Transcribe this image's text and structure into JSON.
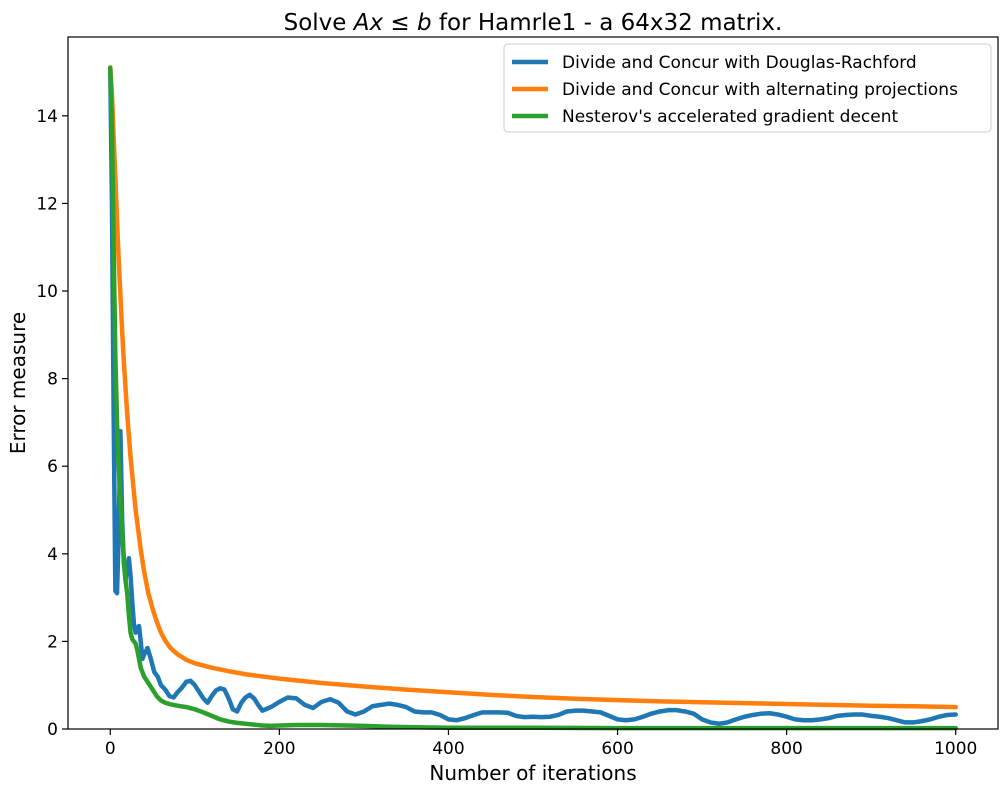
{
  "chart_data": {
    "type": "line",
    "title": "Solve Ax ≤ b for Hamrle1 - a 64x32 matrix.",
    "title_parts": {
      "prefix": "Solve ",
      "math": "Ax ≤ b",
      "suffix": " for Hamrle1 - a 64x32 matrix."
    },
    "xlabel": "Number of iterations",
    "ylabel": "Error measure",
    "xlim": [
      -50,
      1050
    ],
    "ylim": [
      0,
      15.8
    ],
    "xticks": [
      0,
      200,
      400,
      600,
      800,
      1000
    ],
    "yticks": [
      0,
      2,
      4,
      6,
      8,
      10,
      12,
      14
    ],
    "grid": false,
    "legend_position": "top-right",
    "series": [
      {
        "name": "Divide and Concur with Douglas-Rachford",
        "color": "#1f77b4",
        "points": [
          [
            0,
            15.1
          ],
          [
            2,
            12.0
          ],
          [
            4,
            7.2
          ],
          [
            6,
            3.15
          ],
          [
            8,
            3.1
          ],
          [
            10,
            4.5
          ],
          [
            12,
            6.8
          ],
          [
            14,
            4.8
          ],
          [
            16,
            3.8
          ],
          [
            18,
            3.4
          ],
          [
            20,
            3.7
          ],
          [
            22,
            3.9
          ],
          [
            24,
            3.5
          ],
          [
            26,
            2.9
          ],
          [
            28,
            2.4
          ],
          [
            30,
            2.2
          ],
          [
            32,
            2.3
          ],
          [
            34,
            2.35
          ],
          [
            36,
            2.0
          ],
          [
            38,
            1.6
          ],
          [
            40,
            1.7
          ],
          [
            44,
            1.85
          ],
          [
            48,
            1.6
          ],
          [
            52,
            1.3
          ],
          [
            56,
            1.2
          ],
          [
            60,
            1.0
          ],
          [
            65,
            0.9
          ],
          [
            70,
            0.75
          ],
          [
            75,
            0.72
          ],
          [
            80,
            0.85
          ],
          [
            85,
            0.95
          ],
          [
            90,
            1.08
          ],
          [
            95,
            1.1
          ],
          [
            100,
            1.0
          ],
          [
            105,
            0.85
          ],
          [
            110,
            0.7
          ],
          [
            115,
            0.6
          ],
          [
            120,
            0.75
          ],
          [
            125,
            0.88
          ],
          [
            130,
            0.93
          ],
          [
            135,
            0.9
          ],
          [
            140,
            0.7
          ],
          [
            145,
            0.45
          ],
          [
            150,
            0.4
          ],
          [
            155,
            0.6
          ],
          [
            160,
            0.72
          ],
          [
            165,
            0.78
          ],
          [
            170,
            0.7
          ],
          [
            175,
            0.55
          ],
          [
            180,
            0.42
          ],
          [
            190,
            0.5
          ],
          [
            200,
            0.62
          ],
          [
            210,
            0.72
          ],
          [
            220,
            0.7
          ],
          [
            230,
            0.55
          ],
          [
            240,
            0.48
          ],
          [
            250,
            0.62
          ],
          [
            260,
            0.68
          ],
          [
            270,
            0.6
          ],
          [
            280,
            0.4
          ],
          [
            290,
            0.33
          ],
          [
            300,
            0.4
          ],
          [
            310,
            0.52
          ],
          [
            320,
            0.55
          ],
          [
            330,
            0.58
          ],
          [
            340,
            0.55
          ],
          [
            350,
            0.5
          ],
          [
            360,
            0.4
          ],
          [
            370,
            0.38
          ],
          [
            380,
            0.38
          ],
          [
            390,
            0.32
          ],
          [
            400,
            0.22
          ],
          [
            410,
            0.2
          ],
          [
            420,
            0.25
          ],
          [
            430,
            0.32
          ],
          [
            440,
            0.38
          ],
          [
            450,
            0.38
          ],
          [
            460,
            0.38
          ],
          [
            470,
            0.37
          ],
          [
            480,
            0.3
          ],
          [
            490,
            0.27
          ],
          [
            500,
            0.28
          ],
          [
            510,
            0.27
          ],
          [
            520,
            0.28
          ],
          [
            530,
            0.32
          ],
          [
            540,
            0.4
          ],
          [
            550,
            0.42
          ],
          [
            560,
            0.42
          ],
          [
            570,
            0.4
          ],
          [
            580,
            0.38
          ],
          [
            590,
            0.3
          ],
          [
            600,
            0.22
          ],
          [
            610,
            0.2
          ],
          [
            620,
            0.22
          ],
          [
            630,
            0.28
          ],
          [
            640,
            0.35
          ],
          [
            650,
            0.4
          ],
          [
            660,
            0.43
          ],
          [
            670,
            0.43
          ],
          [
            680,
            0.4
          ],
          [
            690,
            0.35
          ],
          [
            700,
            0.22
          ],
          [
            710,
            0.15
          ],
          [
            720,
            0.12
          ],
          [
            730,
            0.15
          ],
          [
            740,
            0.22
          ],
          [
            750,
            0.28
          ],
          [
            760,
            0.32
          ],
          [
            770,
            0.35
          ],
          [
            780,
            0.36
          ],
          [
            790,
            0.33
          ],
          [
            800,
            0.28
          ],
          [
            810,
            0.22
          ],
          [
            820,
            0.2
          ],
          [
            830,
            0.2
          ],
          [
            840,
            0.22
          ],
          [
            850,
            0.25
          ],
          [
            860,
            0.3
          ],
          [
            870,
            0.32
          ],
          [
            880,
            0.33
          ],
          [
            890,
            0.33
          ],
          [
            900,
            0.3
          ],
          [
            910,
            0.28
          ],
          [
            920,
            0.25
          ],
          [
            930,
            0.2
          ],
          [
            940,
            0.15
          ],
          [
            950,
            0.15
          ],
          [
            960,
            0.18
          ],
          [
            970,
            0.22
          ],
          [
            980,
            0.28
          ],
          [
            990,
            0.32
          ],
          [
            1000,
            0.33
          ]
        ]
      },
      {
        "name": "Divide and Concur with alternating projections",
        "color": "#ff7f0e",
        "points": [
          [
            0,
            15.1
          ],
          [
            2,
            14.5
          ],
          [
            4,
            13.5
          ],
          [
            6,
            12.6
          ],
          [
            8,
            11.6
          ],
          [
            10,
            10.7
          ],
          [
            12,
            9.9
          ],
          [
            14,
            9.1
          ],
          [
            16,
            8.4
          ],
          [
            18,
            7.8
          ],
          [
            20,
            7.2
          ],
          [
            22,
            6.7
          ],
          [
            24,
            6.2
          ],
          [
            26,
            5.8
          ],
          [
            28,
            5.4
          ],
          [
            30,
            5.0
          ],
          [
            32,
            4.7
          ],
          [
            34,
            4.4
          ],
          [
            36,
            4.1
          ],
          [
            38,
            3.85
          ],
          [
            40,
            3.6
          ],
          [
            45,
            3.1
          ],
          [
            50,
            2.75
          ],
          [
            55,
            2.45
          ],
          [
            60,
            2.2
          ],
          [
            65,
            2.02
          ],
          [
            70,
            1.88
          ],
          [
            75,
            1.78
          ],
          [
            80,
            1.7
          ],
          [
            90,
            1.58
          ],
          [
            100,
            1.5
          ],
          [
            120,
            1.4
          ],
          [
            140,
            1.32
          ],
          [
            160,
            1.25
          ],
          [
            180,
            1.2
          ],
          [
            200,
            1.15
          ],
          [
            250,
            1.05
          ],
          [
            300,
            0.97
          ],
          [
            350,
            0.9
          ],
          [
            400,
            0.84
          ],
          [
            450,
            0.78
          ],
          [
            500,
            0.73
          ],
          [
            550,
            0.69
          ],
          [
            600,
            0.66
          ],
          [
            650,
            0.63
          ],
          [
            700,
            0.61
          ],
          [
            750,
            0.59
          ],
          [
            800,
            0.57
          ],
          [
            850,
            0.55
          ],
          [
            900,
            0.53
          ],
          [
            950,
            0.52
          ],
          [
            1000,
            0.5
          ]
        ]
      },
      {
        "name": "Nesterov's accelerated gradient decent",
        "color": "#2ca02c",
        "points": [
          [
            0,
            15.1
          ],
          [
            2,
            13.8
          ],
          [
            4,
            11.0
          ],
          [
            6,
            8.5
          ],
          [
            8,
            7.0
          ],
          [
            10,
            6.0
          ],
          [
            12,
            5.2
          ],
          [
            14,
            4.5
          ],
          [
            16,
            3.9
          ],
          [
            18,
            3.4
          ],
          [
            20,
            3.1
          ],
          [
            22,
            2.6
          ],
          [
            24,
            2.2
          ],
          [
            26,
            2.05
          ],
          [
            28,
            2.0
          ],
          [
            30,
            1.95
          ],
          [
            32,
            1.8
          ],
          [
            34,
            1.6
          ],
          [
            36,
            1.4
          ],
          [
            38,
            1.3
          ],
          [
            40,
            1.2
          ],
          [
            45,
            1.05
          ],
          [
            50,
            0.9
          ],
          [
            55,
            0.75
          ],
          [
            60,
            0.65
          ],
          [
            65,
            0.6
          ],
          [
            70,
            0.57
          ],
          [
            80,
            0.53
          ],
          [
            90,
            0.5
          ],
          [
            100,
            0.45
          ],
          [
            110,
            0.38
          ],
          [
            120,
            0.3
          ],
          [
            130,
            0.22
          ],
          [
            140,
            0.17
          ],
          [
            150,
            0.14
          ],
          [
            160,
            0.12
          ],
          [
            170,
            0.1
          ],
          [
            180,
            0.08
          ],
          [
            190,
            0.07
          ],
          [
            200,
            0.08
          ],
          [
            220,
            0.09
          ],
          [
            250,
            0.09
          ],
          [
            280,
            0.08
          ],
          [
            300,
            0.07
          ],
          [
            330,
            0.05
          ],
          [
            360,
            0.04
          ],
          [
            400,
            0.03
          ],
          [
            450,
            0.03
          ],
          [
            500,
            0.03
          ],
          [
            600,
            0.02
          ],
          [
            700,
            0.02
          ],
          [
            800,
            0.02
          ],
          [
            900,
            0.02
          ],
          [
            1000,
            0.02
          ]
        ]
      }
    ]
  }
}
